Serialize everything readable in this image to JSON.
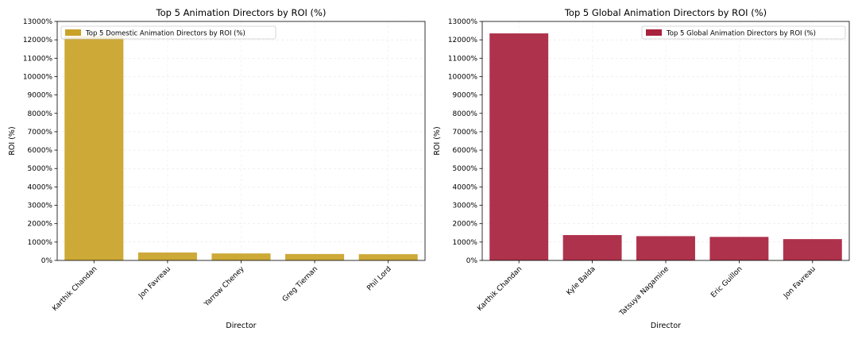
{
  "chart_data": [
    {
      "type": "bar",
      "title": "Top 5 Animation Directors by ROI (%)",
      "xlabel": "Director",
      "ylabel": "ROI (%)",
      "categories": [
        "Karthik Chandan",
        "Jon Favreau",
        "Yarrow Cheney",
        "Greg Tiernan",
        "Phil Lord"
      ],
      "series": [
        {
          "name": "Top 5 Domestic Animation Directors by ROI (%)",
          "values": [
            12200,
            430,
            380,
            350,
            340
          ],
          "color": "#c9a227"
        }
      ],
      "ylim": [
        0,
        13000
      ],
      "yticks": [
        0,
        1000,
        2000,
        3000,
        4000,
        5000,
        6000,
        7000,
        8000,
        9000,
        10000,
        11000,
        12000,
        13000
      ],
      "ytick_suffix": "%",
      "grid": true,
      "legend": "top-left"
    },
    {
      "type": "bar",
      "title": "Top 5 Global Animation Directors by ROI (%)",
      "xlabel": "Director",
      "ylabel": "ROI (%)",
      "categories": [
        "Karthik Chandan",
        "Kyle Balda",
        "Tatsuya Nagamine",
        "Eric Guillon",
        "Jon Favreau"
      ],
      "series": [
        {
          "name": "Top 5 Global Animation Directors by ROI (%)",
          "values": [
            12350,
            1380,
            1320,
            1280,
            1160
          ],
          "color": "#a8213d"
        }
      ],
      "ylim": [
        0,
        13000
      ],
      "yticks": [
        0,
        1000,
        2000,
        3000,
        4000,
        5000,
        6000,
        7000,
        8000,
        9000,
        10000,
        11000,
        12000,
        13000
      ],
      "ytick_suffix": "%",
      "grid": true,
      "legend": "top-right"
    }
  ]
}
